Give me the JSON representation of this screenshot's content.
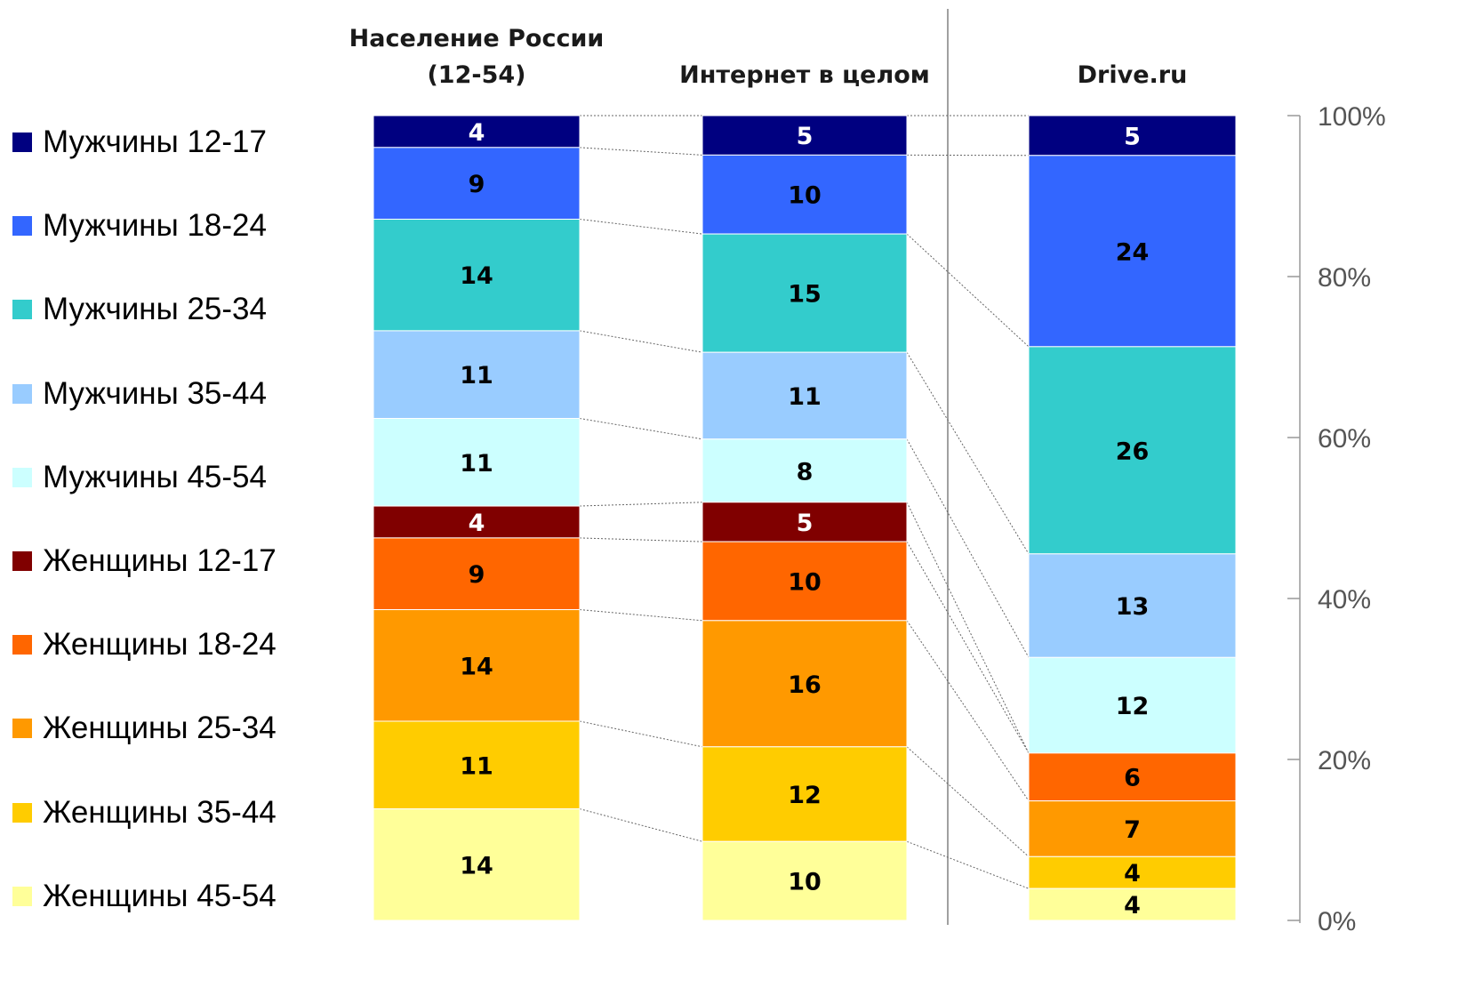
{
  "chart_data": {
    "type": "bar",
    "stacked": true,
    "percent": true,
    "categories": [
      "Население России\n(12-54)",
      "Интернет в целом",
      "Drive.ru"
    ],
    "series": [
      {
        "name": "Мужчины 12-17",
        "color": "#000080",
        "values": [
          4,
          5,
          5
        ]
      },
      {
        "name": "Мужчины 18-24",
        "color": "#3366FF",
        "values": [
          9,
          10,
          24
        ]
      },
      {
        "name": "Мужчины 25-34",
        "color": "#33CCCC",
        "values": [
          14,
          15,
          26
        ]
      },
      {
        "name": "Мужчины 35-44",
        "color": "#99CCFF",
        "values": [
          11,
          11,
          13
        ]
      },
      {
        "name": "Мужчины 45-54",
        "color": "#CCFFFF",
        "values": [
          11,
          8,
          12
        ]
      },
      {
        "name": "Женщины 12-17",
        "color": "#800000",
        "values": [
          4,
          5,
          0
        ]
      },
      {
        "name": "Женщины 18-24",
        "color": "#FF6600",
        "values": [
          9,
          10,
          6
        ]
      },
      {
        "name": "Женщины 25-34",
        "color": "#FF9900",
        "values": [
          14,
          16,
          7
        ]
      },
      {
        "name": "Женщины 35-44",
        "color": "#FFCC00",
        "values": [
          11,
          12,
          4
        ]
      },
      {
        "name": "Женщины 45-54",
        "color": "#FFFF99",
        "values": [
          14,
          10,
          4
        ]
      }
    ],
    "yticks": [
      "0%",
      "20%",
      "40%",
      "60%",
      "80%",
      "100%"
    ],
    "ylim": [
      0,
      100
    ],
    "legend_position": "left",
    "grid": false
  }
}
